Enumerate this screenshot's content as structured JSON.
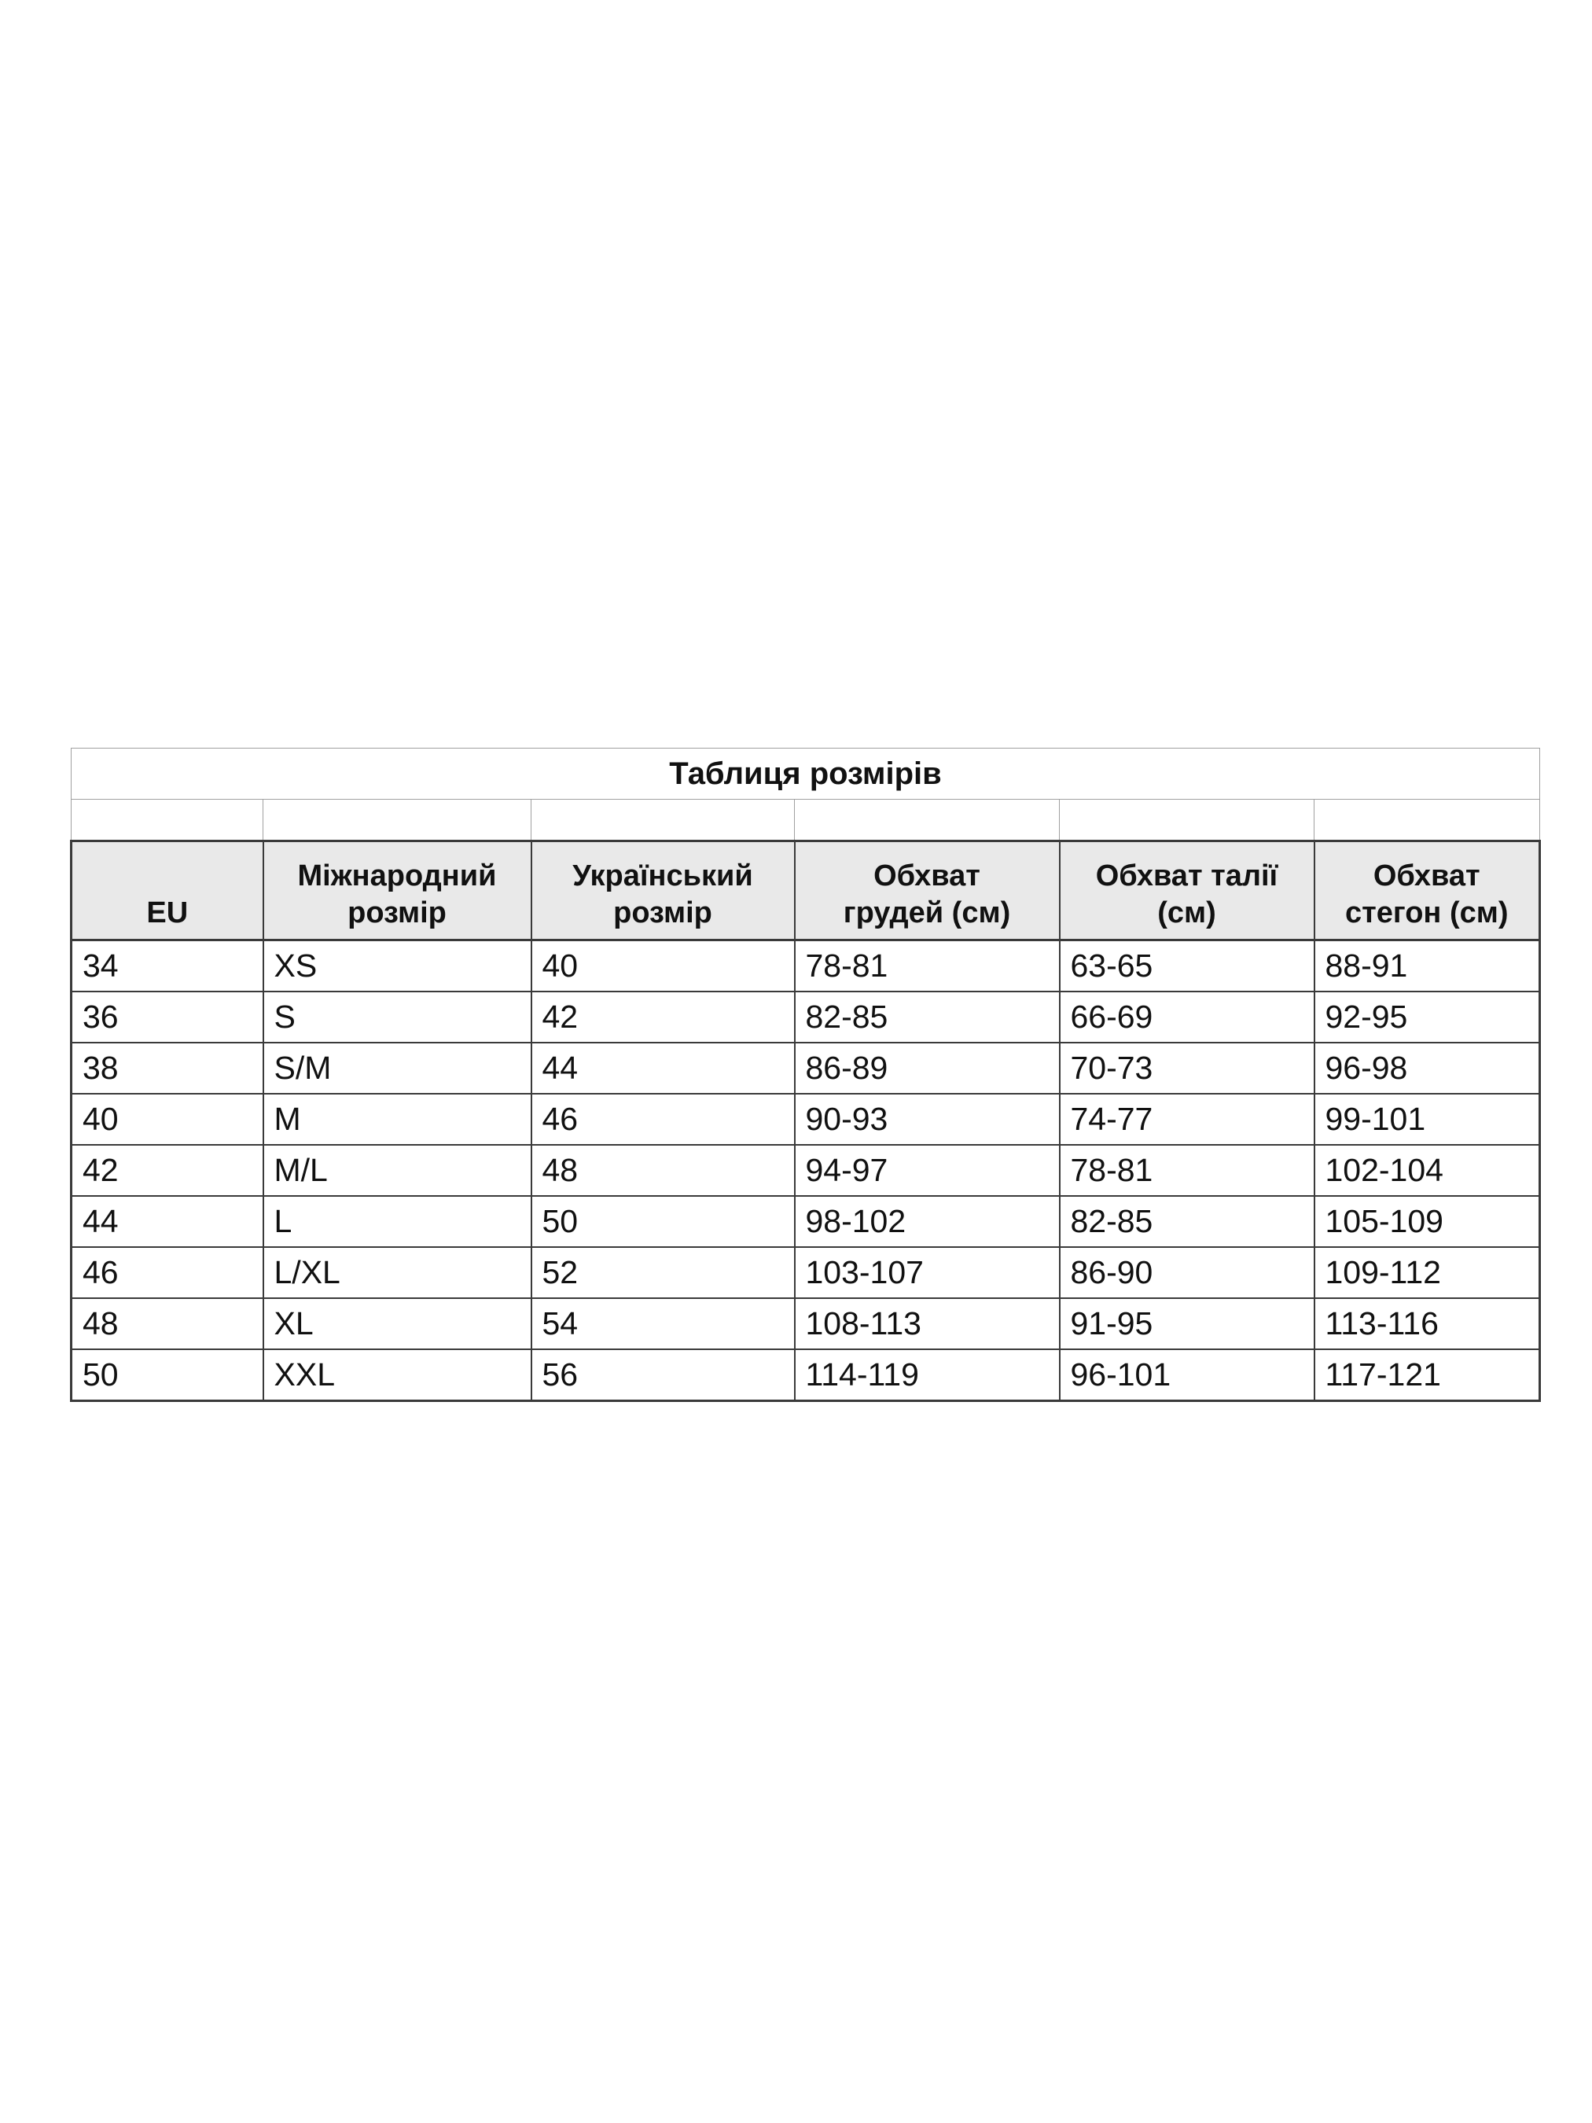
{
  "page": {
    "background_color": "#ffffff",
    "text_color": "#111111",
    "border_light_color": "#a0a0a0",
    "border_dark_color": "#3a3a3a",
    "header_bg_color": "#e9e9e9"
  },
  "table": {
    "title": "Таблиця розмірів",
    "headers": [
      "EU",
      "Міжнародний\nрозмір",
      "Український\nрозмір",
      "Обхват\nгрудей (см)",
      "Обхват талії\n(см)",
      "Обхват\nстегон (см)"
    ],
    "rows": [
      [
        "34",
        "XS",
        "40",
        "78-81",
        "63-65",
        "88-91"
      ],
      [
        "36",
        "S",
        "42",
        "82-85",
        "66-69",
        "92-95"
      ],
      [
        "38",
        "S/M",
        "44",
        "86-89",
        "70-73",
        "96-98"
      ],
      [
        "40",
        "M",
        "46",
        "90-93",
        "74-77",
        "99-101"
      ],
      [
        "42",
        "M/L",
        "48",
        "94-97",
        "78-81",
        "102-104"
      ],
      [
        "44",
        "L",
        "50",
        "98-102",
        "82-85",
        "105-109"
      ],
      [
        "46",
        "L/XL",
        "52",
        "103-107",
        "86-90",
        "109-112"
      ],
      [
        "48",
        "XL",
        "54",
        "108-113",
        "91-95",
        "113-116"
      ],
      [
        "50",
        "XXL",
        "56",
        "114-119",
        "96-101",
        "117-121"
      ]
    ]
  },
  "chart_data": {
    "type": "table",
    "title": "Таблиця розмірів",
    "columns": [
      "EU",
      "Міжнародний розмір",
      "Український розмір",
      "Обхват грудей (см)",
      "Обхват талії (см)",
      "Обхват стегон (см)"
    ],
    "rows": [
      [
        "34",
        "XS",
        "40",
        "78-81",
        "63-65",
        "88-91"
      ],
      [
        "36",
        "S",
        "42",
        "82-85",
        "66-69",
        "92-95"
      ],
      [
        "38",
        "S/M",
        "44",
        "86-89",
        "70-73",
        "96-98"
      ],
      [
        "40",
        "M",
        "46",
        "90-93",
        "74-77",
        "99-101"
      ],
      [
        "42",
        "M/L",
        "48",
        "94-97",
        "78-81",
        "102-104"
      ],
      [
        "44",
        "L",
        "50",
        "98-102",
        "82-85",
        "105-109"
      ],
      [
        "46",
        "L/XL",
        "52",
        "103-107",
        "86-90",
        "109-112"
      ],
      [
        "48",
        "XL",
        "54",
        "108-113",
        "91-95",
        "113-116"
      ],
      [
        "50",
        "XXL",
        "56",
        "114-119",
        "96-101",
        "117-121"
      ]
    ]
  }
}
